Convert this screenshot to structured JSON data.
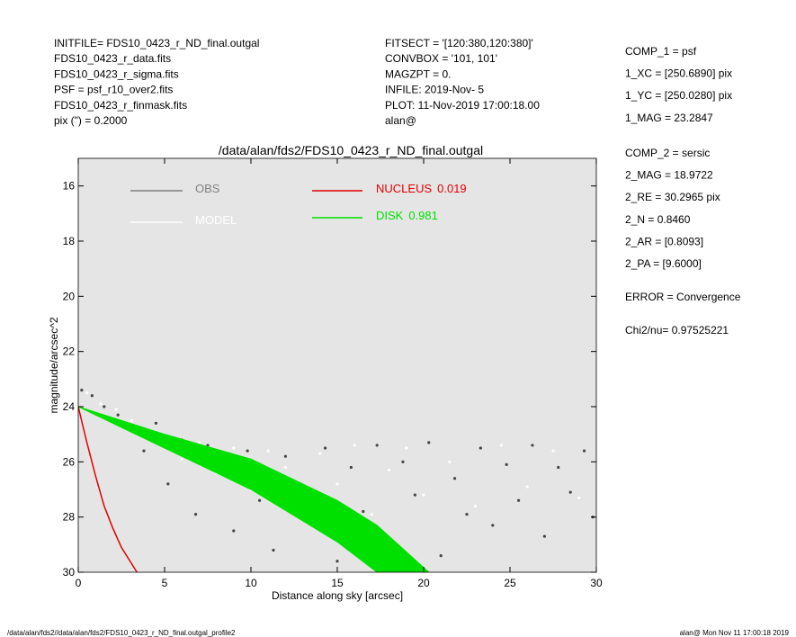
{
  "header": {
    "left": [
      "INITFILE= FDS10_0423_r_ND_final.outgal",
      "FDS10_0423_r_data.fits",
      "FDS10_0423_r_sigma.fits",
      "PSF     = psf_r10_over2.fits",
      "FDS10_0423_r_finmask.fits",
      "pix (\") =  0.2000"
    ],
    "middle": [
      "FITSECT = '[120:380,120:380]'",
      "CONVBOX = '101, 101'",
      "MAGZPT =             0.",
      "INFILE: 2019-Nov- 5",
      "PLOT: 11-Nov-2019 17:00:18.00",
      "alan@"
    ],
    "right": [
      [
        "COMP_1  = psf",
        "1_XC    = [250.6890] pix",
        "1_YC    = [250.0280] pix",
        "1_MAG   = 23.2847"
      ],
      [
        "COMP_2  = sersic",
        "2_MAG   = 18.9722",
        "2_RE    = 30.2965 pix",
        "2_N     = 0.8460",
        "2_AR    = [0.8093]",
        "2_PA    = [9.6000]"
      ],
      [
        "ERROR   = Convergence"
      ],
      [
        "Chi2/nu=       0.97525221"
      ]
    ]
  },
  "footer": {
    "left": "/data/alan/fds2//data/alan/fds2/FDS10_0423_r_ND_final.outgal_profile2",
    "right": "alan@  Mon Nov 11 17:00:18 2019"
  },
  "chart_data": {
    "type": "profile",
    "title": "/data/alan/fds2/FDS10_0423_r_ND_final.outgal",
    "x_label": "Distance along sky [arcsec]",
    "y_label": "magnitude/arcsec^2",
    "xlim": [
      0,
      30
    ],
    "ylim": [
      30,
      15
    ],
    "xticks": [
      0,
      5,
      10,
      15,
      20,
      25,
      30
    ],
    "yticks": [
      16,
      18,
      20,
      22,
      24,
      26,
      28,
      30
    ],
    "series": [
      {
        "name": "OBS",
        "color": "#808080",
        "point_color": "#444444",
        "x": [
          0.2,
          0.8,
          1.5,
          2.3,
          3.0,
          3.8,
          4.5,
          5.2,
          6.0,
          6.8,
          7.5,
          8.3,
          9.0,
          9.8,
          10.5,
          11.3,
          12.0,
          12.8,
          13.5,
          14.3,
          15.0,
          15.8,
          16.5,
          17.3,
          18.0,
          18.8,
          19.5,
          20.3,
          21.0,
          21.8,
          22.5,
          23.3,
          24.0,
          24.8,
          25.5,
          26.3,
          27.0,
          27.8,
          28.5,
          29.3,
          29.8
        ],
        "values": [
          23.4,
          23.6,
          24.0,
          24.3,
          24.8,
          25.6,
          24.6,
          26.8,
          25.2,
          27.9,
          25.4,
          26.3,
          28.5,
          25.6,
          27.4,
          29.2,
          25.8,
          26.9,
          28.1,
          25.5,
          29.6,
          26.2,
          27.8,
          25.4,
          28.9,
          26.0,
          27.2,
          25.3,
          29.4,
          26.6,
          27.9,
          25.5,
          28.3,
          26.1,
          27.4,
          25.4,
          28.7,
          26.2,
          27.1,
          25.6,
          28.0
        ]
      },
      {
        "name": "MODEL",
        "color": "#ffffff",
        "point_color": "#ffffff",
        "x": [
          0.5,
          1.3,
          2.2,
          3.1,
          4.0,
          5.0,
          6.0,
          7.0,
          8.0,
          9.0,
          10.0,
          11.0,
          12.0,
          13.0,
          14.0,
          15.0,
          16.0,
          17.0,
          18.0,
          19.0,
          20.0,
          21.5,
          23.0,
          24.5,
          26.0,
          27.5,
          29.0
        ],
        "values": [
          23.5,
          23.9,
          24.1,
          24.5,
          24.9,
          25.1,
          25.9,
          25.3,
          26.4,
          25.5,
          27.0,
          25.6,
          26.2,
          27.5,
          25.7,
          26.8,
          25.4,
          27.9,
          26.3,
          25.5,
          27.2,
          26.0,
          27.6,
          25.4,
          26.9,
          25.6,
          27.3
        ]
      }
    ],
    "components": [
      {
        "name": "NUCLEUS",
        "fraction": 0.019,
        "color": "#e00000",
        "x": [
          0,
          0.5,
          1,
          1.5,
          2,
          2.5,
          3,
          3.4
        ],
        "values": [
          24,
          25.3,
          26.5,
          27.6,
          28.4,
          29.1,
          29.6,
          30
        ]
      },
      {
        "name": "DISK",
        "fraction": 0.981,
        "color": "#00e000",
        "x": [
          0,
          5,
          10,
          15,
          17.3,
          20.3
        ],
        "values": [
          24,
          25.0,
          25.9,
          27.4,
          28.3,
          30
        ],
        "lower": [
          24,
          25.5,
          27.0,
          28.9,
          30,
          null
        ]
      }
    ]
  }
}
